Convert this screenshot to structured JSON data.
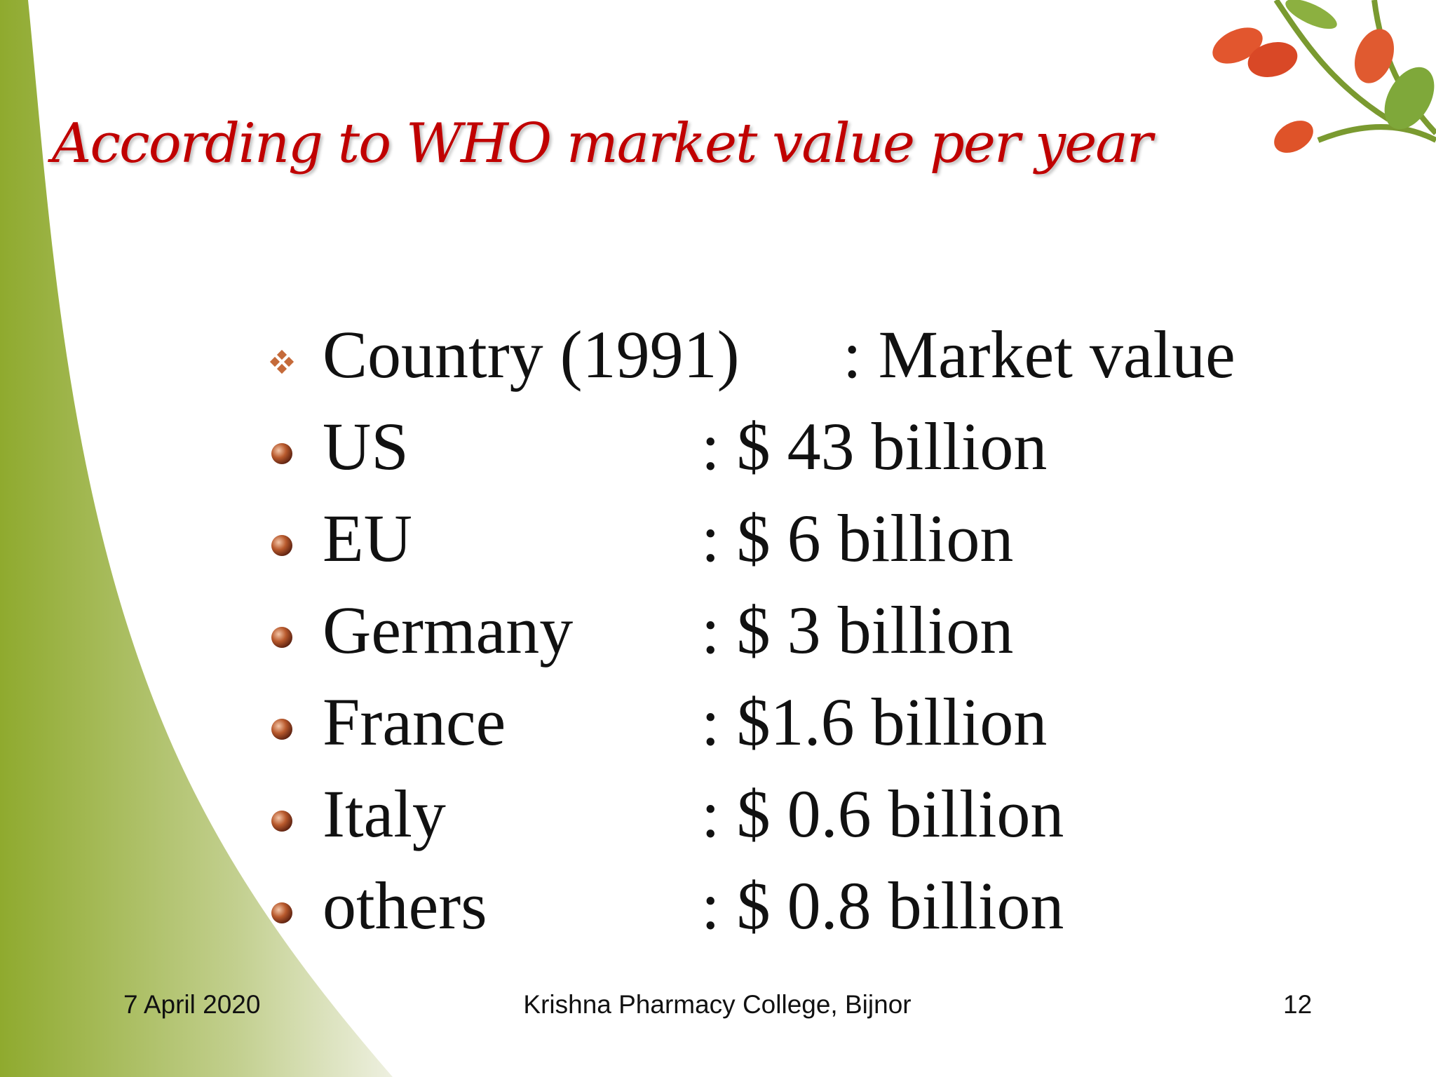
{
  "title": "According to WHO market value per year",
  "header": {
    "label": "Country (1991)",
    "value": ": Market value"
  },
  "rows": [
    {
      "label": "US",
      "value": ":  $ 43 billion"
    },
    {
      "label": "EU",
      "value": ":  $ 6 billion"
    },
    {
      "label": "Germany",
      "value": ": $ 3 billion"
    },
    {
      "label": "France",
      "value": ": $1.6 billion"
    },
    {
      "label": "Italy",
      "value": ": $ 0.6 billion"
    },
    {
      "label": "others",
      "value": ": $ 0.8 billion"
    }
  ],
  "footer": {
    "date": "7 April 2020",
    "college": "Krishna Pharmacy College, Bijnor",
    "page": "12"
  }
}
